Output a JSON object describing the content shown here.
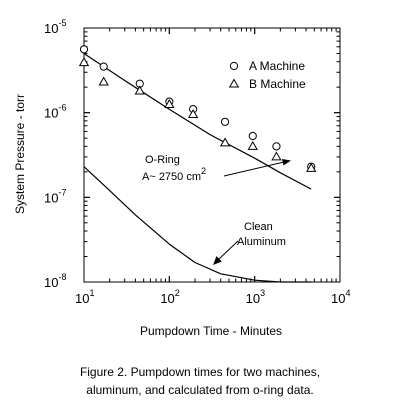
{
  "chart_data": {
    "type": "scatter",
    "xscale": "log",
    "yscale": "log",
    "xlim": [
      10,
      10000
    ],
    "ylim": [
      1e-08,
      1e-05
    ],
    "xlabel": "Pumpdown Time - Minutes",
    "ylabel": "System Pressure - torr",
    "x_ticks": [
      {
        "base": "10",
        "exp": "1"
      },
      {
        "base": "10",
        "exp": "2"
      },
      {
        "base": "10",
        "exp": "3"
      },
      {
        "base": "10",
        "exp": "4"
      }
    ],
    "y_ticks": [
      {
        "base": "10",
        "exp": "-8"
      },
      {
        "base": "10",
        "exp": "-7"
      },
      {
        "base": "10",
        "exp": "-6"
      },
      {
        "base": "10",
        "exp": "-5"
      }
    ],
    "legend_position": "top-right",
    "series": [
      {
        "name": "A Machine",
        "marker": "circle",
        "points": [
          [
            10,
            5.6e-06
          ],
          [
            17,
            3.5e-06
          ],
          [
            45,
            2.2e-06
          ],
          [
            100,
            1.35e-06
          ],
          [
            190,
            1.1e-06
          ],
          [
            450,
            7.8e-07
          ],
          [
            950,
            5.3e-07
          ],
          [
            1800,
            4e-07
          ],
          [
            4600,
            2.3e-07
          ]
        ]
      },
      {
        "name": "B Machine",
        "marker": "triangle",
        "points": [
          [
            10,
            3.9e-06
          ],
          [
            17,
            2.3e-06
          ],
          [
            45,
            1.8e-06
          ],
          [
            100,
            1.25e-06
          ],
          [
            190,
            9.5e-07
          ],
          [
            450,
            4.4e-07
          ],
          [
            950,
            4e-07
          ],
          [
            1800,
            3e-07
          ],
          [
            4600,
            2.2e-07
          ]
        ]
      },
      {
        "name": "",
        "marker": "line",
        "points": [
          [
            10,
            5e-06
          ],
          [
            30,
            2.4e-06
          ],
          [
            100,
            1.1e-06
          ],
          [
            300,
            5.5e-07
          ],
          [
            1000,
            2.9e-07
          ],
          [
            2000,
            1.95e-07
          ],
          [
            4600,
            1.25e-07
          ]
        ]
      },
      {
        "name": "",
        "marker": "line",
        "points": [
          [
            10,
            2.3e-07
          ],
          [
            20,
            1.2e-07
          ],
          [
            40,
            6.2e-08
          ],
          [
            100,
            2.8e-08
          ],
          [
            200,
            1.7e-08
          ],
          [
            400,
            1.25e-08
          ],
          [
            1000,
            1.05e-08
          ],
          [
            2000,
            1e-08
          ],
          [
            4600,
            1e-08
          ]
        ]
      }
    ],
    "annotations": {
      "oring_line1": "O-Ring",
      "oring_line2": "A~ 2750 cm",
      "oring_exp": "2",
      "clean_line1": "Clean",
      "clean_line2": "Aluminum"
    }
  },
  "caption": {
    "line1": "Figure 2. Pumpdown times for two machines,",
    "line2": "aluminum, and calculated from o-ring data."
  }
}
